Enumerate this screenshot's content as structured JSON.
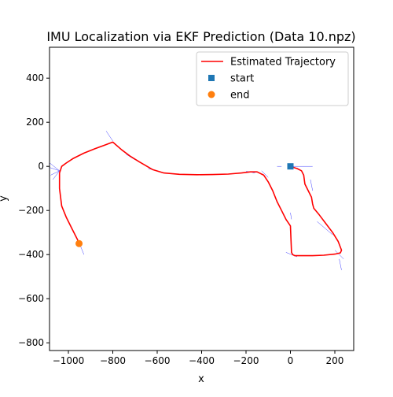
{
  "chart_data": {
    "type": "line",
    "title": "IMU Localization via EKF Prediction (Data 10.npz)",
    "xlabel": "x",
    "ylabel": "y",
    "xlim": [
      -1085,
      285
    ],
    "ylim": [
      -835,
      540
    ],
    "xticks": [
      -1000,
      -800,
      -600,
      -400,
      -200,
      0,
      200
    ],
    "xtick_labels": [
      "−1000",
      "−800",
      "−600",
      "−400",
      "−200",
      "0",
      "200"
    ],
    "yticks": [
      400,
      200,
      0,
      -200,
      -400,
      -600,
      -800
    ],
    "ytick_labels": [
      "400",
      "200",
      "0",
      "−200",
      "−400",
      "−600",
      "−800"
    ],
    "grid": false,
    "legend_position": "top-right",
    "series": [
      {
        "name": "Estimated Trajectory",
        "kind": "line",
        "color": "#ff0000",
        "points": [
          [
            0,
            0
          ],
          [
            15,
            -5
          ],
          [
            30,
            -10
          ],
          [
            50,
            -20
          ],
          [
            60,
            -40
          ],
          [
            65,
            -80
          ],
          [
            80,
            -110
          ],
          [
            95,
            -140
          ],
          [
            100,
            -170
          ],
          [
            105,
            -190
          ],
          [
            130,
            -220
          ],
          [
            160,
            -260
          ],
          [
            190,
            -300
          ],
          [
            215,
            -340
          ],
          [
            230,
            -380
          ],
          [
            225,
            -392
          ],
          [
            200,
            -398
          ],
          [
            150,
            -403
          ],
          [
            100,
            -405
          ],
          [
            50,
            -405
          ],
          [
            20,
            -405
          ],
          [
            10,
            -400
          ],
          [
            5,
            -390
          ],
          [
            3,
            -340
          ],
          [
            0,
            -270
          ],
          [
            -20,
            -240
          ],
          [
            -40,
            -200
          ],
          [
            -60,
            -160
          ],
          [
            -80,
            -110
          ],
          [
            -100,
            -70
          ],
          [
            -120,
            -40
          ],
          [
            -150,
            -25
          ],
          [
            -180,
            -25
          ],
          [
            -220,
            -30
          ],
          [
            -280,
            -35
          ],
          [
            -350,
            -37
          ],
          [
            -420,
            -38
          ],
          [
            -500,
            -36
          ],
          [
            -570,
            -30
          ],
          [
            -620,
            -15
          ],
          [
            -680,
            20
          ],
          [
            -720,
            45
          ],
          [
            -760,
            75
          ],
          [
            -800,
            110
          ],
          [
            -840,
            95
          ],
          [
            -880,
            80
          ],
          [
            -930,
            60
          ],
          [
            -980,
            35
          ],
          [
            -1010,
            15
          ],
          [
            -1030,
            0
          ],
          [
            -1040,
            -30
          ],
          [
            -1040,
            -100
          ],
          [
            -1030,
            -180
          ],
          [
            -1010,
            -230
          ],
          [
            -985,
            -280
          ],
          [
            -960,
            -330
          ],
          [
            -952,
            -350
          ]
        ]
      },
      {
        "name": "start",
        "kind": "scatter",
        "marker": "square",
        "color": "#1f77b4",
        "points": [
          [
            0,
            0
          ]
        ]
      },
      {
        "name": "end",
        "kind": "scatter",
        "marker": "circle",
        "color": "#ff7f0e",
        "points": [
          [
            -952,
            -350
          ]
        ]
      }
    ],
    "heading_lines": {
      "color": "#0000ff",
      "segments": [
        [
          -60,
          0,
          -40,
          0
        ],
        [
          0,
          0,
          100,
          0
        ],
        [
          90,
          -60,
          100,
          -110
        ],
        [
          0,
          -210,
          5,
          -240
        ],
        [
          120,
          -250,
          190,
          -310
        ],
        [
          -20,
          -390,
          30,
          -410
        ],
        [
          200,
          -380,
          240,
          -420
        ],
        [
          220,
          -420,
          230,
          -470
        ],
        [
          -800,
          115,
          -830,
          160
        ],
        [
          -1040,
          -20,
          -1090,
          20
        ],
        [
          -1040,
          -20,
          -1085,
          -5
        ],
        [
          -1040,
          -20,
          -1080,
          -40
        ],
        [
          -1040,
          -20,
          -1070,
          -60
        ],
        [
          -950,
          -350,
          -930,
          -400
        ],
        [
          -700,
          30,
          -740,
          55
        ],
        [
          -600,
          -20,
          -640,
          -10
        ],
        [
          -200,
          -22,
          -160,
          -30
        ],
        [
          -100,
          -50,
          -130,
          -20
        ]
      ]
    }
  }
}
